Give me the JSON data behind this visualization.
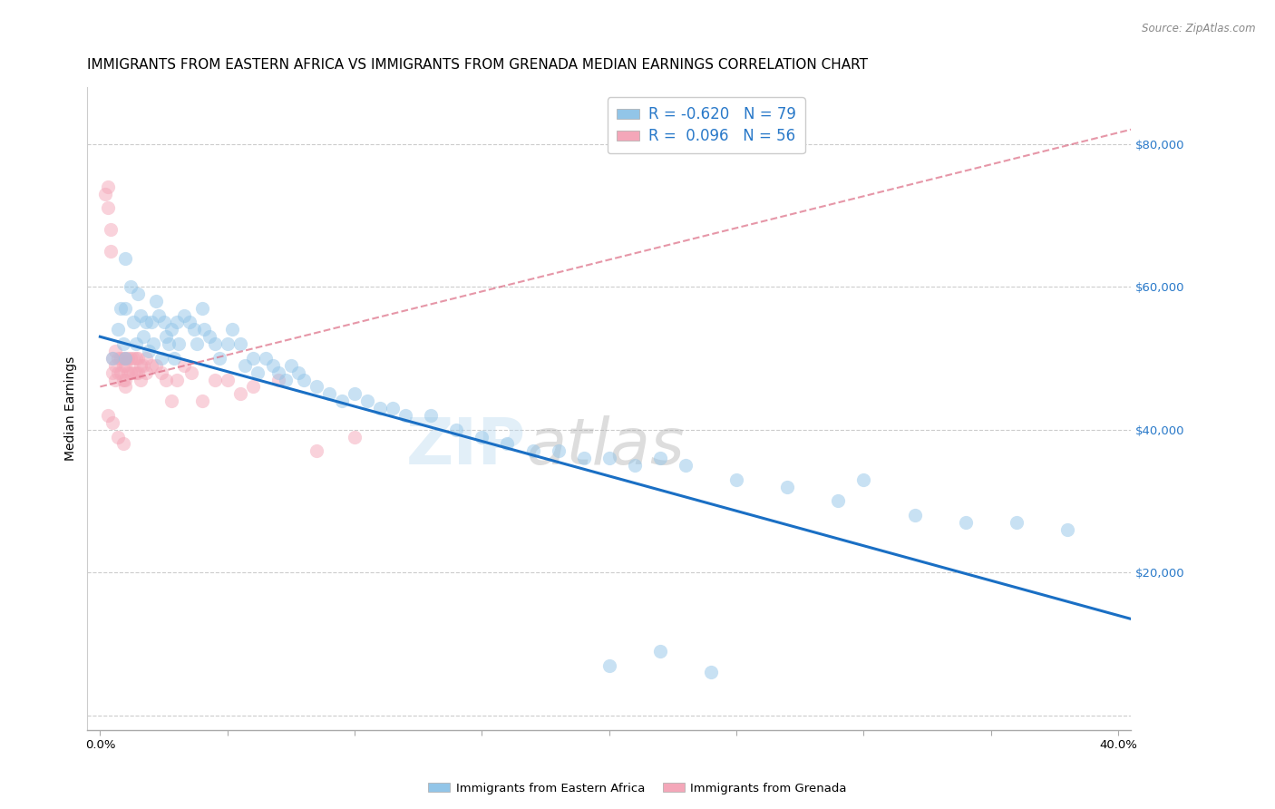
{
  "title": "IMMIGRANTS FROM EASTERN AFRICA VS IMMIGRANTS FROM GRENADA MEDIAN EARNINGS CORRELATION CHART",
  "source": "Source: ZipAtlas.com",
  "ylabel": "Median Earnings",
  "right_yticks": [
    0,
    20000,
    40000,
    60000,
    80000
  ],
  "right_yticklabels": [
    "",
    "$20,000",
    "$40,000",
    "$60,000",
    "$80,000"
  ],
  "xticks": [
    0.0,
    0.05,
    0.1,
    0.15,
    0.2,
    0.25,
    0.3,
    0.35,
    0.4
  ],
  "xticklabels": [
    "0.0%",
    "",
    "",
    "",
    "",
    "",
    "",
    "",
    "40.0%"
  ],
  "xlim": [
    -0.005,
    0.405
  ],
  "ylim": [
    -2000,
    88000
  ],
  "legend_blue_label": "R = -0.620   N = 79",
  "legend_pink_label": "R =  0.096   N = 56",
  "blue_color": "#92c5e8",
  "pink_color": "#f4a7b9",
  "blue_line_color": "#1a6fc4",
  "pink_line_color": "#d9607a",
  "watermark": "ZIPatlas",
  "blue_scatter_x": [
    0.005,
    0.007,
    0.008,
    0.009,
    0.01,
    0.01,
    0.01,
    0.012,
    0.013,
    0.014,
    0.015,
    0.016,
    0.017,
    0.018,
    0.019,
    0.02,
    0.021,
    0.022,
    0.023,
    0.024,
    0.025,
    0.026,
    0.027,
    0.028,
    0.029,
    0.03,
    0.031,
    0.033,
    0.035,
    0.037,
    0.038,
    0.04,
    0.041,
    0.043,
    0.045,
    0.047,
    0.05,
    0.052,
    0.055,
    0.057,
    0.06,
    0.062,
    0.065,
    0.068,
    0.07,
    0.073,
    0.075,
    0.078,
    0.08,
    0.085,
    0.09,
    0.095,
    0.1,
    0.105,
    0.11,
    0.115,
    0.12,
    0.13,
    0.14,
    0.15,
    0.16,
    0.17,
    0.18,
    0.19,
    0.2,
    0.21,
    0.22,
    0.23,
    0.25,
    0.27,
    0.29,
    0.3,
    0.32,
    0.34,
    0.36,
    0.38,
    0.2,
    0.22,
    0.24
  ],
  "blue_scatter_y": [
    50000,
    54000,
    57000,
    52000,
    64000,
    57000,
    50000,
    60000,
    55000,
    52000,
    59000,
    56000,
    53000,
    55000,
    51000,
    55000,
    52000,
    58000,
    56000,
    50000,
    55000,
    53000,
    52000,
    54000,
    50000,
    55000,
    52000,
    56000,
    55000,
    54000,
    52000,
    57000,
    54000,
    53000,
    52000,
    50000,
    52000,
    54000,
    52000,
    49000,
    50000,
    48000,
    50000,
    49000,
    48000,
    47000,
    49000,
    48000,
    47000,
    46000,
    45000,
    44000,
    45000,
    44000,
    43000,
    43000,
    42000,
    42000,
    40000,
    39000,
    38000,
    37000,
    37000,
    36000,
    36000,
    35000,
    36000,
    35000,
    33000,
    32000,
    30000,
    33000,
    28000,
    27000,
    27000,
    26000,
    7000,
    9000,
    6000
  ],
  "pink_scatter_x": [
    0.002,
    0.003,
    0.003,
    0.004,
    0.004,
    0.005,
    0.005,
    0.006,
    0.006,
    0.006,
    0.007,
    0.007,
    0.008,
    0.008,
    0.009,
    0.009,
    0.009,
    0.01,
    0.01,
    0.01,
    0.01,
    0.011,
    0.011,
    0.012,
    0.012,
    0.013,
    0.013,
    0.014,
    0.014,
    0.015,
    0.015,
    0.016,
    0.016,
    0.017,
    0.018,
    0.018,
    0.02,
    0.022,
    0.024,
    0.026,
    0.028,
    0.03,
    0.033,
    0.036,
    0.04,
    0.045,
    0.05,
    0.055,
    0.06,
    0.07,
    0.085,
    0.1,
    0.003,
    0.005,
    0.007,
    0.009
  ],
  "pink_scatter_y": [
    73000,
    74000,
    71000,
    68000,
    65000,
    50000,
    48000,
    51000,
    49000,
    47000,
    50000,
    48000,
    50000,
    48000,
    50000,
    49000,
    47000,
    50000,
    49000,
    47000,
    46000,
    50000,
    48000,
    50000,
    48000,
    50000,
    48000,
    50000,
    48000,
    50000,
    48000,
    49000,
    47000,
    49000,
    50000,
    48000,
    49000,
    49000,
    48000,
    47000,
    44000,
    47000,
    49000,
    48000,
    44000,
    47000,
    47000,
    45000,
    46000,
    47000,
    37000,
    39000,
    42000,
    41000,
    39000,
    38000
  ],
  "blue_line_x0": 0.0,
  "blue_line_x1": 0.405,
  "blue_line_y0": 53000,
  "blue_line_y1": 13500,
  "pink_line_x0": 0.0,
  "pink_line_x1": 0.405,
  "pink_line_y0": 46000,
  "pink_line_y1": 82000,
  "grid_color": "#cccccc",
  "bg_color": "#ffffff",
  "title_fontsize": 11,
  "axis_label_fontsize": 10,
  "tick_fontsize": 9.5,
  "scatter_size": 120,
  "scatter_alpha": 0.5,
  "legend_fontsize": 12
}
